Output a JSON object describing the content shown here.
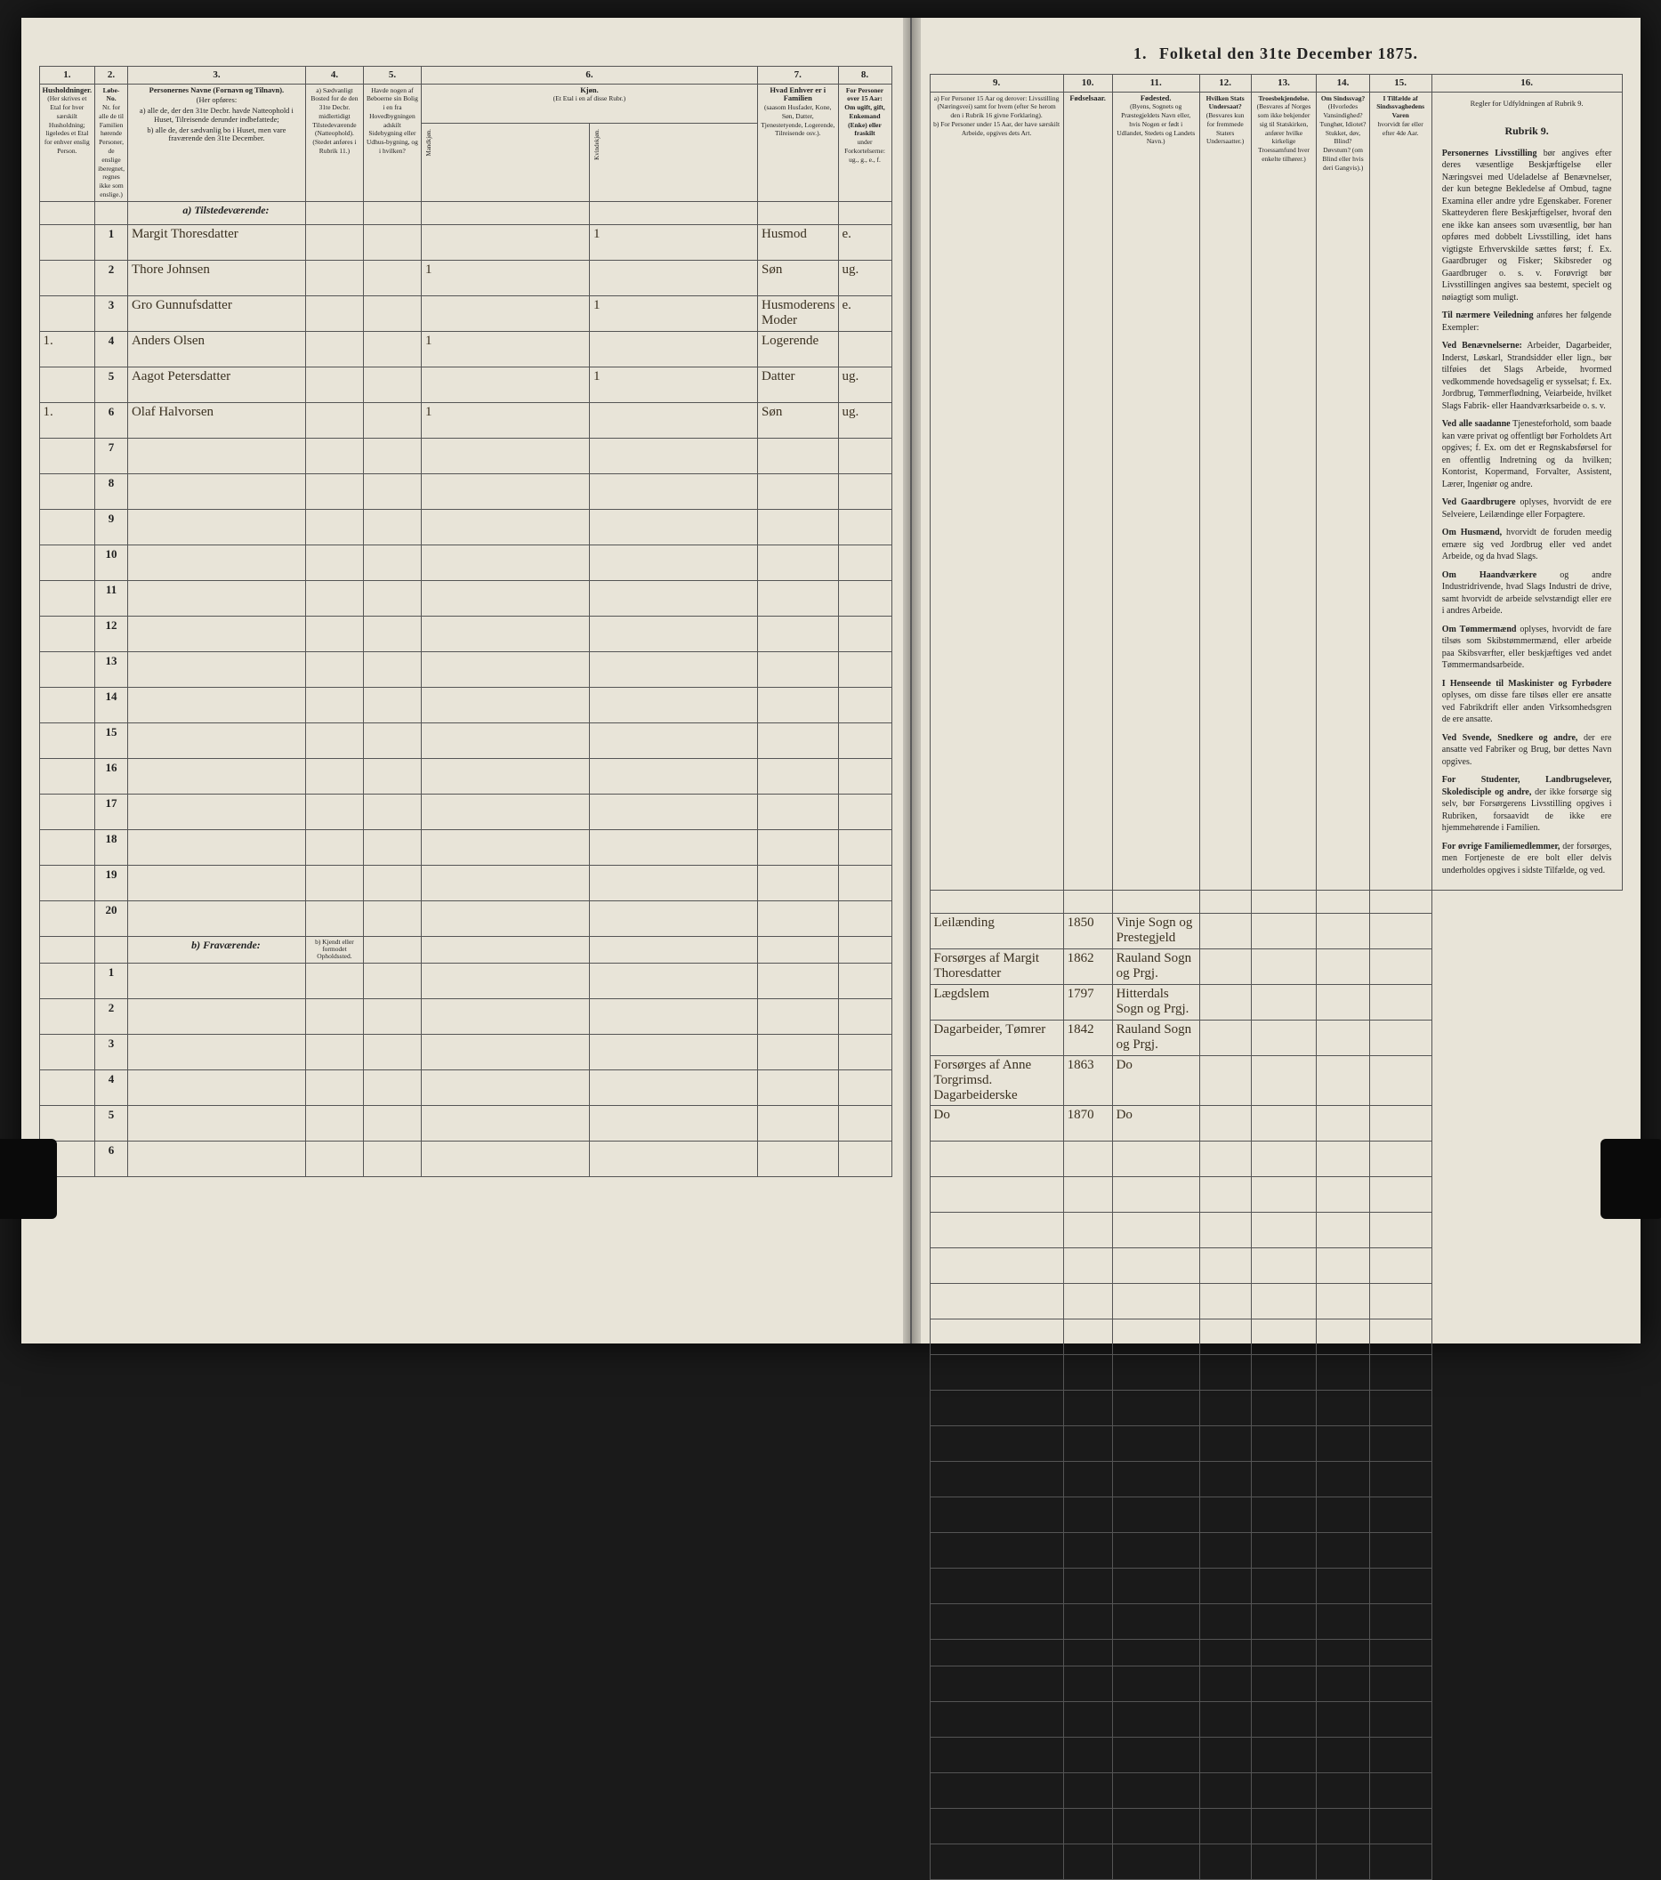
{
  "page_background": "#e8e4d8",
  "ink_color": "#222222",
  "handwriting_color": "#3a3020",
  "border_color": "#555555",
  "header": {
    "prefix_num": "1.",
    "title": "Folketal den 31te December 1875."
  },
  "column_numbers": [
    "1.",
    "2.",
    "3.",
    "4.",
    "5.",
    "6.",
    "7.",
    "8.",
    "9.",
    "10.",
    "11.",
    "12.",
    "13.",
    "14.",
    "15.",
    "16."
  ],
  "column_heads": {
    "c1": "Husholdninger.",
    "c1_sub": "(Her skrives et Etal for hver særskilt Husholdning; ligeledes et Etal for enhver enslig Person.",
    "c2": "Løbe-No.",
    "c2_sub": "Nr. for alle de til Familien hørende Personer, de enslige iberegnet, regnes ikke som enslige.)",
    "c3_title": "Personernes Navne (Fornavn og Tilnavn).",
    "c3_opf": "(Her opføres:",
    "c3_a": "a) alle de, der den 31te Decbr. havde Natteophold i Huset, Tilreisende derunder indbefattede;",
    "c3_b": "b) alle de, der sædvanlig bo i Huset, men vare fraværende den 31te December.",
    "c4": "a) Sædvanligt Bosted for de den 31te Decbr. midlertidigt Tilstedeværende (Natteophold).",
    "c4_sub": "(Stedet anføres i Rubrik 11.)",
    "c5": "Havde nogen af Beboerne sin Bolig i en fra Hovedbygningen adskilt Sidebygning eller Udhus-bygning, og i hvilken?",
    "c6_title": "Kjøn.",
    "c6_sub": "(Et Etal i en af disse Rubr.)",
    "c6_m": "Mandkjøn.",
    "c6_k": "Kvindekjøn.",
    "c7_title": "Hvad Enhver er i Familien",
    "c7_sub": "(saasom Husfader, Kone, Søn, Datter, Tjenestetyende, Logerende, Tilreisende osv.).",
    "c8_title": "For Personer over 15 Aar: Om ugift, gift, Enkemand (Enke) eller fraskilt",
    "c8_sub": "under Forkortelserne: ug., g., e., f.",
    "c9_title": "a) For Personer 15 Aar og derover: Livsstilling (Næringsvei) samt for hvem (efter Se herom den i Rubrik 16 givne Forklaring).",
    "c9_sub": "b) For Personer under 15 Aar, der have særskilt Arbeide, opgives dets Art.",
    "c10": "Fødselsaar.",
    "c11_title": "Fødested.",
    "c11_sub": "(Byens, Sognets og Præstegjeldets Navn eller, hvis Nogen er født i Udlandet, Stedets og Landets Navn.)",
    "c12_title": "Hvilken Stats Undersaat?",
    "c12_sub": "(Besvares kun for fremmede Staters Undersaatter.)",
    "c13_title": "Troesbekjendelse.",
    "c13_sub": "(Besvares af Norges som ikke bekjender sig til Statskirken, anfører hvilke kirkelige Troessamfund hver enkelte tilhører.)",
    "c14_title": "Om Sindssvag?",
    "c14_sub": "(Hvorledes Vansindighed? Tunghør, Idiotet? Stukket, døv, Blind? Døvstum? (om Blind eller hvis deri Gangvis).)",
    "c15_title": "I Tilfælde af Sindssvaghedens Varen",
    "c15_sub": "hvorvidt før eller efter 4de Aar.",
    "c16_title": "Regler for Udfyldningen af Rubrik 9."
  },
  "sections": {
    "a_label": "a) Tilstedeværende:",
    "b_label": "b) Fraværende:",
    "b_note": "b) Kjendt eller formodet Opholdssted."
  },
  "rows": [
    {
      "hh": "",
      "num": "1",
      "name": "Margit Thoresdatter",
      "c4": "",
      "c5": "",
      "m": "",
      "k": "1",
      "fam": "Husmod",
      "civ": "e.",
      "occ": "Leilænding",
      "year": "1850",
      "place": "Vinje Sogn og Prestegjeld",
      "c12": "",
      "c13": "",
      "c14": "",
      "c15": ""
    },
    {
      "hh": "",
      "num": "2",
      "name": "Thore Johnsen",
      "c4": "",
      "c5": "",
      "m": "1",
      "k": "",
      "fam": "Søn",
      "civ": "ug.",
      "occ": "Forsørges af Margit Thoresdatter",
      "year": "1862",
      "place": "Rauland Sogn og Prgj.",
      "c12": "",
      "c13": "",
      "c14": "",
      "c15": ""
    },
    {
      "hh": "",
      "num": "3",
      "name": "Gro Gunnufsdatter",
      "c4": "",
      "c5": "",
      "m": "",
      "k": "1",
      "fam": "Husmoderens Moder",
      "civ": "e.",
      "occ": "Lægdslem",
      "year": "1797",
      "place": "Hitterdals Sogn og Prgj.",
      "c12": "",
      "c13": "",
      "c14": "",
      "c15": ""
    },
    {
      "hh": "1.",
      "num": "4",
      "name": "Anders Olsen",
      "c4": "",
      "c5": "",
      "m": "1",
      "k": "",
      "fam": "Logerende",
      "civ": "",
      "occ": "Dagarbeider, Tømrer",
      "year": "1842",
      "place": "Rauland Sogn og Prgj.",
      "c12": "",
      "c13": "",
      "c14": "",
      "c15": ""
    },
    {
      "hh": "",
      "num": "5",
      "name": "Aagot Petersdatter",
      "c4": "",
      "c5": "",
      "m": "",
      "k": "1",
      "fam": "Datter",
      "civ": "ug.",
      "occ": "Forsørges af Anne Torgrimsd. Dagarbeiderske",
      "year": "1863",
      "place": "Do",
      "c12": "",
      "c13": "",
      "c14": "",
      "c15": ""
    },
    {
      "hh": "1.",
      "num": "6",
      "name": "Olaf Halvorsen",
      "c4": "",
      "c5": "",
      "m": "1",
      "k": "",
      "fam": "Søn",
      "civ": "ug.",
      "occ": "Do",
      "year": "1870",
      "place": "Do",
      "c12": "",
      "c13": "",
      "c14": "",
      "c15": ""
    }
  ],
  "empty_rows_a": [
    "7",
    "8",
    "9",
    "10",
    "11",
    "12",
    "13",
    "14",
    "15",
    "16",
    "17",
    "18",
    "19",
    "20"
  ],
  "empty_rows_b": [
    "1",
    "2",
    "3",
    "4",
    "5",
    "6"
  ],
  "instructions": {
    "heading": "Rubrik 9.",
    "p1_lead": "Personernes Livsstilling",
    "p1": " bør angives efter deres væsentlige Beskjæftigelse eller Næringsvei med Udeladelse af Benævnelser, der kun betegne Bekledelse af Ombud, tagne Examina eller andre ydre Egenskaber. Forener Skatteyderen flere Beskjæftigelser, hvoraf den ene ikke kan ansees som uvæsentlig, bør han opføres med dobbelt Livsstilling, idet hans vigtigste Erhvervskilde sættes først; f. Ex. Gaardbruger og Fisker; Skibsreder og Gaardbruger o. s. v. Forøvrigt bør Livsstillingen angives saa bestemt, specielt og nøiagtigt som muligt.",
    "p2_lead": "Til nærmere Veiledning",
    "p2": " anføres her følgende Exempler:",
    "p3_lead": "Ved Benævnelserne:",
    "p3": " Arbeider, Dagarbeider, Inderst, Løskarl, Strandsidder eller lign., bør tilføies det Slags Arbeide, hvormed vedkommende hovedsagelig er sysselsat; f. Ex. Jordbrug, Tømmerflødning, Veiarbeide, hvilket Slags Fabrik- eller Haandværksarbeide o. s. v.",
    "p4_lead": "Ved alle saadanne",
    "p4": " Tjenesteforhold, som baade kan være privat og offentligt bør Forholdets Art opgives; f. Ex. om det er Regnskabsførsel for en offentlig Indretning og da hvilken; Kontorist, Kopermand, Forvalter, Assistent, Lærer, Ingeniør og andre.",
    "p5_lead": "Ved Gaardbrugere",
    "p5": " oplyses, hvorvidt de ere Selveiere, Leilændinge eller Forpagtere.",
    "p6_lead": "Om Husmænd,",
    "p6": " hvorvidt de foruden meedig ernære sig ved Jordbrug eller ved andet Arbeide, og da hvad Slags.",
    "p7_lead": "Om Haandværkere",
    "p7": " og andre Industridrivende, hvad Slags Industri de drive, samt hvorvidt de arbeide selvstændigt eller ere i andres Arbeide.",
    "p8_lead": "Om Tømmermænd",
    "p8": " oplyses, hvorvidt de fare tilsøs som Skibstømmermænd, eller arbeide paa Skibsværfter, eller beskjæftiges ved andet Tømmermandsarbeide.",
    "p9_lead": "I Henseende til Maskinister og Fyrbødere",
    "p9": " oplyses, om disse fare tilsøs eller ere ansatte ved Fabrikdrift eller anden Virksomhedsgren de ere ansatte.",
    "p10_lead": "Ved Svende, Snedkere og andre,",
    "p10": " der ere ansatte ved Fabriker og Brug, bør dettes Navn opgives.",
    "p11_lead": "For Studenter, Landbrugselever, Skoledisciple og andre,",
    "p11": " der ikke forsørge sig selv, bør Forsørgerens Livsstilling opgives i Rubriken, forsaavidt de ikke ere hjemmehørende i Familien.",
    "p12_lead": "For øvrige Familiemedlemmer,",
    "p12": " der forsørges, men Fortjeneste de ere bolt eller delvis underholdes opgives i sidste Tilfælde, og ved."
  }
}
